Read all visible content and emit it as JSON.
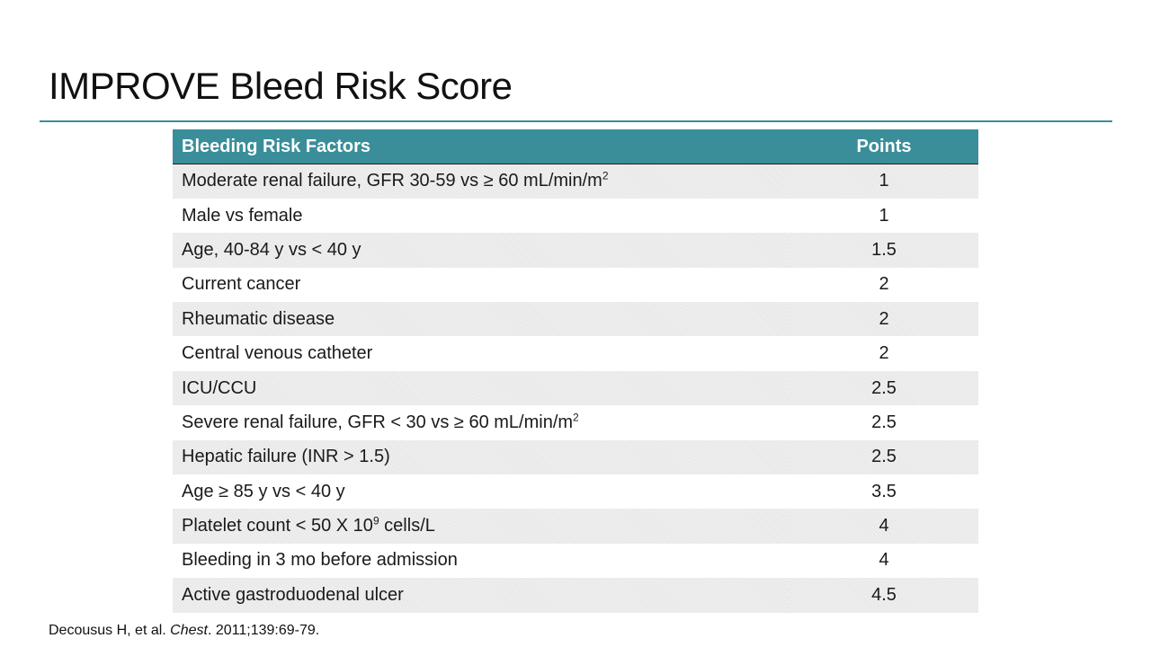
{
  "title": "IMPROVE Bleed Risk Score",
  "colors": {
    "accent": "#3a8e9a",
    "row_shade": "#e9e9e9"
  },
  "table": {
    "headers": {
      "factor": "Bleeding Risk Factors",
      "points": "Points"
    },
    "rows": [
      {
        "factor": "Moderate renal failure, GFR 30-59 vs ≥ 60 mL/min/m",
        "sup": "2",
        "points": "1"
      },
      {
        "factor": "Male vs female",
        "points": "1"
      },
      {
        "factor": "Age, 40-84 y vs < 40 y",
        "points": "1.5"
      },
      {
        "factor": "Current cancer",
        "points": "2"
      },
      {
        "factor": "Rheumatic disease",
        "points": "2"
      },
      {
        "factor": "Central venous catheter",
        "points": "2"
      },
      {
        "factor": "ICU/CCU",
        "points": "2.5"
      },
      {
        "factor": "Severe renal failure, GFR < 30 vs ≥ 60 mL/min/m",
        "sup": "2",
        "points": "2.5"
      },
      {
        "factor": "Hepatic failure (INR > 1.5)",
        "points": "2.5"
      },
      {
        "factor": "Age ≥ 85 y vs < 40 y",
        "points": "3.5"
      },
      {
        "factor": "Platelet count < 50 X 10",
        "sup": "9",
        "factor_after": " cells/L",
        "points": "4"
      },
      {
        "factor": "Bleeding in 3 mo before admission",
        "points": "4"
      },
      {
        "factor": "Active gastroduodenal ulcer",
        "points": "4.5"
      }
    ]
  },
  "citation": {
    "authors": "Decousus H, et al. ",
    "journal": "Chest",
    "details": ". 2011;139:69-79."
  }
}
